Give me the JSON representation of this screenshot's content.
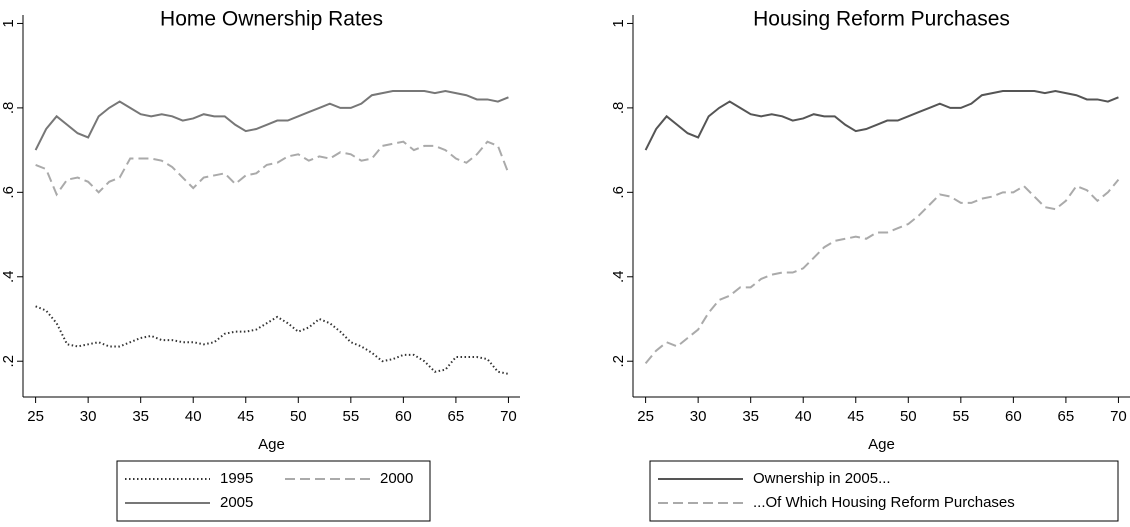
{
  "chart_data": [
    {
      "type": "line",
      "title": "Home Ownership Rates",
      "xlabel": "Age",
      "x": [
        25,
        26,
        27,
        28,
        29,
        30,
        31,
        32,
        33,
        34,
        35,
        36,
        37,
        38,
        39,
        40,
        41,
        42,
        43,
        44,
        45,
        46,
        47,
        48,
        49,
        50,
        51,
        52,
        53,
        54,
        55,
        56,
        57,
        58,
        59,
        60,
        61,
        62,
        63,
        64,
        65,
        66,
        67,
        68,
        69,
        70
      ],
      "series": [
        {
          "name": "1995",
          "color": "#333333",
          "dash": "dotted",
          "values": [
            0.33,
            0.32,
            0.29,
            0.24,
            0.235,
            0.24,
            0.245,
            0.235,
            0.235,
            0.245,
            0.255,
            0.26,
            0.25,
            0.25,
            0.245,
            0.245,
            0.24,
            0.245,
            0.265,
            0.27,
            0.27,
            0.275,
            0.29,
            0.305,
            0.29,
            0.27,
            0.28,
            0.3,
            0.29,
            0.27,
            0.245,
            0.235,
            0.22,
            0.2,
            0.205,
            0.215,
            0.215,
            0.2,
            0.175,
            0.18,
            0.21,
            0.21,
            0.21,
            0.205,
            0.175,
            0.17
          ]
        },
        {
          "name": "2000",
          "color": "#aaaaaa",
          "dash": "dashed",
          "values": [
            0.665,
            0.655,
            0.595,
            0.63,
            0.635,
            0.625,
            0.6,
            0.625,
            0.635,
            0.68,
            0.68,
            0.68,
            0.675,
            0.66,
            0.635,
            0.61,
            0.635,
            0.64,
            0.645,
            0.62,
            0.64,
            0.645,
            0.665,
            0.67,
            0.685,
            0.69,
            0.675,
            0.685,
            0.68,
            0.695,
            0.69,
            0.675,
            0.68,
            0.71,
            0.715,
            0.72,
            0.7,
            0.71,
            0.71,
            0.7,
            0.68,
            0.67,
            0.69,
            0.72,
            0.71,
            0.645
          ]
        },
        {
          "name": "2005",
          "color": "#777777",
          "dash": "solid",
          "values": [
            0.7,
            0.75,
            0.78,
            0.76,
            0.74,
            0.73,
            0.78,
            0.8,
            0.815,
            0.8,
            0.785,
            0.78,
            0.785,
            0.78,
            0.77,
            0.775,
            0.785,
            0.78,
            0.78,
            0.76,
            0.745,
            0.75,
            0.76,
            0.77,
            0.77,
            0.78,
            0.79,
            0.8,
            0.81,
            0.8,
            0.8,
            0.81,
            0.83,
            0.835,
            0.84,
            0.84,
            0.84,
            0.84,
            0.835,
            0.84,
            0.835,
            0.83,
            0.82,
            0.82,
            0.815,
            0.825
          ]
        }
      ],
      "xlim": [
        23.8,
        71.1
      ],
      "xticks": [
        25,
        30,
        35,
        40,
        45,
        50,
        55,
        60,
        65,
        70
      ],
      "ylim": [
        0.12,
        1.02
      ],
      "yticks": [
        {
          "value": 0.2,
          "label": ".2"
        },
        {
          "value": 0.4,
          "label": ".4"
        },
        {
          "value": 0.6,
          "label": ".6"
        },
        {
          "value": 0.8,
          "label": ".8"
        },
        1
      ],
      "legend_columns": 2
    },
    {
      "type": "line",
      "title": "Housing Reform Purchases",
      "xlabel": "Age",
      "x": [
        25,
        26,
        27,
        28,
        29,
        30,
        31,
        32,
        33,
        34,
        35,
        36,
        37,
        38,
        39,
        40,
        41,
        42,
        43,
        44,
        45,
        46,
        47,
        48,
        49,
        50,
        51,
        52,
        53,
        54,
        55,
        56,
        57,
        58,
        59,
        60,
        61,
        62,
        63,
        64,
        65,
        66,
        67,
        68,
        69,
        70
      ],
      "series": [
        {
          "name": "Ownership in 2005...",
          "color": "#555555",
          "dash": "solid",
          "values": [
            0.7,
            0.75,
            0.78,
            0.76,
            0.74,
            0.73,
            0.78,
            0.8,
            0.815,
            0.8,
            0.785,
            0.78,
            0.785,
            0.78,
            0.77,
            0.775,
            0.785,
            0.78,
            0.78,
            0.76,
            0.745,
            0.75,
            0.76,
            0.77,
            0.77,
            0.78,
            0.79,
            0.8,
            0.81,
            0.8,
            0.8,
            0.81,
            0.83,
            0.835,
            0.84,
            0.84,
            0.84,
            0.84,
            0.835,
            0.84,
            0.835,
            0.83,
            0.82,
            0.82,
            0.815,
            0.825
          ]
        },
        {
          "name": "...Of Which Housing Reform Purchases",
          "color": "#aaaaaa",
          "dash": "dashed",
          "values": [
            0.195,
            0.225,
            0.245,
            0.235,
            0.255,
            0.275,
            0.315,
            0.345,
            0.355,
            0.375,
            0.375,
            0.395,
            0.405,
            0.41,
            0.41,
            0.42,
            0.445,
            0.47,
            0.485,
            0.49,
            0.495,
            0.49,
            0.505,
            0.505,
            0.515,
            0.525,
            0.545,
            0.57,
            0.595,
            0.59,
            0.575,
            0.575,
            0.585,
            0.59,
            0.6,
            0.6,
            0.615,
            0.59,
            0.565,
            0.56,
            0.58,
            0.615,
            0.605,
            0.58,
            0.6,
            0.63
          ]
        }
      ],
      "xlim": [
        23.8,
        71.1
      ],
      "xticks": [
        25,
        30,
        35,
        40,
        45,
        50,
        55,
        60,
        65,
        70
      ],
      "ylim": [
        0.12,
        1.02
      ],
      "yticks": [
        {
          "value": 0.2,
          "label": ".2"
        },
        {
          "value": 0.4,
          "label": ".4"
        },
        {
          "value": 0.6,
          "label": ".6"
        },
        {
          "value": 0.8,
          "label": ".8"
        },
        1
      ],
      "legend_columns": 1
    }
  ]
}
